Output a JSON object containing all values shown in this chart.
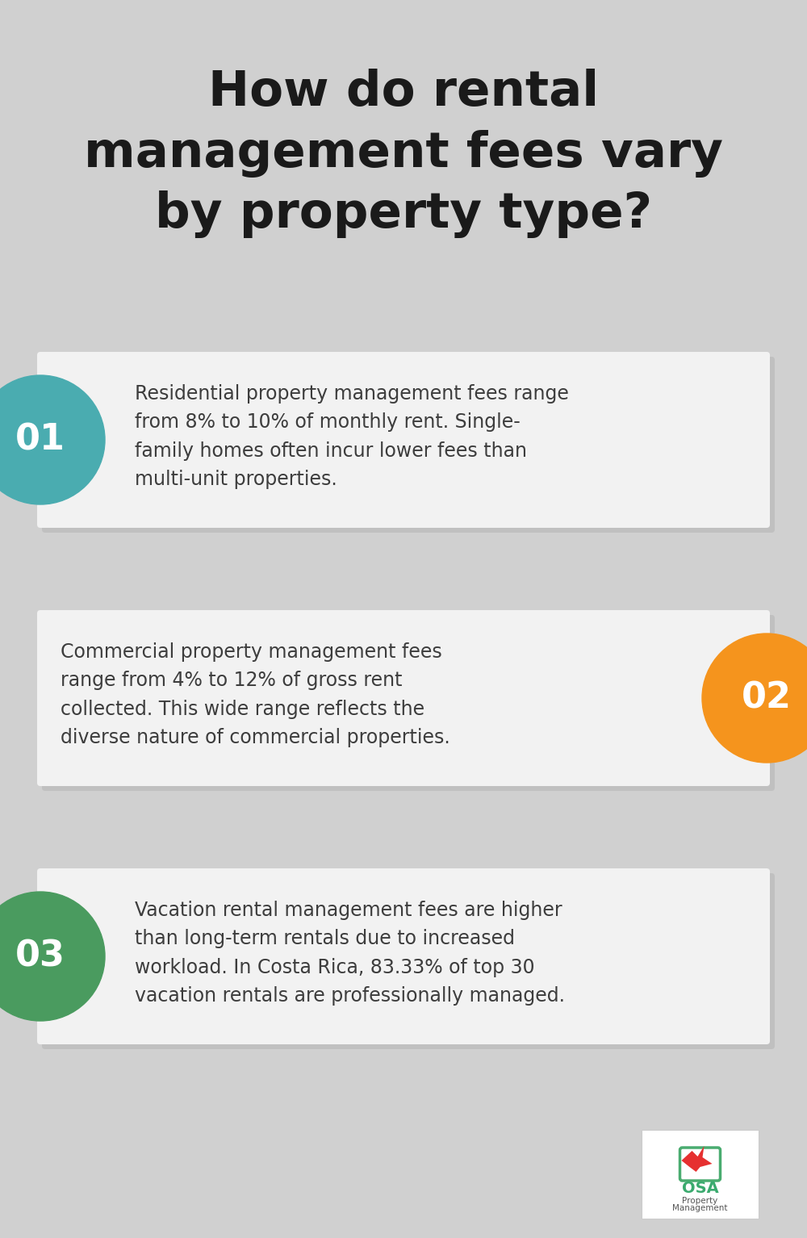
{
  "title_lines": [
    "How do rental",
    "management fees vary",
    "by property type?"
  ],
  "background_color": "#d0d0d0",
  "card_color": "#f2f2f2",
  "title_color": "#1a1a1a",
  "title_fontsize": 44,
  "cards": [
    {
      "number": "01",
      "circle_color": "#4aacb0",
      "circle_side": "left",
      "text": "Residential property management fees range\nfrom 8% to 10% of monthly rent. Single-\nfamily homes often incur lower fees than\nmulti-unit properties."
    },
    {
      "number": "02",
      "circle_color": "#f5941d",
      "circle_side": "right",
      "text": "Commercial property management fees\nrange from 4% to 12% of gross rent\ncollected. This wide range reflects the\ndiverse nature of commercial properties."
    },
    {
      "number": "03",
      "circle_color": "#4a9b5f",
      "circle_side": "left",
      "text": "Vacation rental management fees are higher\nthan long-term rentals due to increased\nworkload. In Costa Rica, 83.33% of top 30\nvacation rentals are professionally managed."
    }
  ],
  "text_color": "#3d3d3d",
  "text_fontsize": 17,
  "number_fontsize": 32,
  "shadow_color": "#b8b8b8",
  "card_shadow_color": "#c0c0c0"
}
